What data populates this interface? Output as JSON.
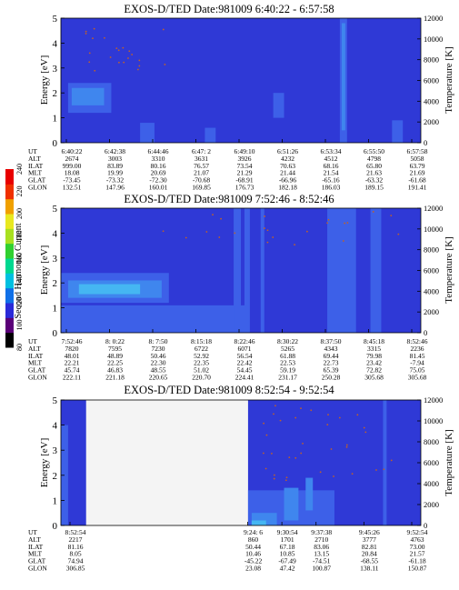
{
  "colorbar": {
    "label": "Second Harmonic Current",
    "ticks": [
      "80",
      "100",
      "120",
      "140",
      "160",
      "180",
      "200",
      "220",
      "240"
    ],
    "colors": [
      "#000000",
      "#5a0078",
      "#2a2ad8",
      "#1070e8",
      "#00c0e0",
      "#00d890",
      "#30d030",
      "#a8e020",
      "#e8e820",
      "#f0a000",
      "#f03000",
      "#e80000"
    ]
  },
  "palette": {
    "background": "#2f39d6",
    "light": "#3d60e8",
    "cyan": "#3f86ee",
    "bright": "#45b6f2",
    "white": "#f4f4f4",
    "dots": "#c0602a"
  },
  "chart_data": [
    {
      "type": "heatmap",
      "title": "EXOS-D/TED   Date:981009  6:40:22 - 6:57:58",
      "ylabel": "Energy [eV]",
      "y2label": "Temperature [K]",
      "ylim": [
        0,
        5
      ],
      "y2lim": [
        0,
        12000
      ],
      "yticks": [
        "0",
        "1",
        "2",
        "3",
        "4",
        "5"
      ],
      "y2ticks": [
        "0",
        "2000",
        "4000",
        "6000",
        "8000",
        "10000",
        "12000"
      ],
      "row_labels": [
        "UT",
        "ALT",
        "ILAT",
        "MLT",
        "GLAT",
        "GLON"
      ],
      "columns": [
        [
          "6:40:22",
          "2674",
          "999.00",
          "18.08",
          "-73.45",
          "132.51"
        ],
        [
          "6:42:38",
          "3003",
          "83.89",
          "19.99",
          "-73.32",
          "147.96"
        ],
        [
          "6:44:46",
          "3310",
          "80.16",
          "20.69",
          "-72.30",
          "160.01"
        ],
        [
          "6:47: 2",
          "3631",
          "76.57",
          "21.07",
          "-70.68",
          "169.85"
        ],
        [
          "6:49:10",
          "3926",
          "73.54",
          "21.29",
          "-68.91",
          "176.73"
        ],
        [
          "6:51:26",
          "4232",
          "70.63",
          "21.44",
          "-66.96",
          "182.18"
        ],
        [
          "6:53:34",
          "4512",
          "68.16",
          "21.54",
          "-65.16",
          "186.03"
        ],
        [
          "6:55:50",
          "4798",
          "65.80",
          "21.63",
          "-63.32",
          "189.15"
        ],
        [
          "6:57:58",
          "5058",
          "63.79",
          "21.69",
          "-61.68",
          "191.41"
        ]
      ]
    },
    {
      "type": "heatmap",
      "title": "EXOS-D/TED   Date:981009  7:52:46 - 8:52:46",
      "ylabel": "Energy [eV]",
      "y2label": "Temperature [K]",
      "ylim": [
        0,
        5
      ],
      "y2lim": [
        0,
        12000
      ],
      "yticks": [
        "0",
        "1",
        "2",
        "3",
        "4",
        "5"
      ],
      "y2ticks": [
        "0",
        "2000",
        "4000",
        "6000",
        "8000",
        "10000",
        "12000"
      ],
      "row_labels": [
        "UT",
        "ALT",
        "ILAT",
        "MLT",
        "GLAT",
        "GLON"
      ],
      "columns": [
        [
          "7:52:46",
          "7820",
          "48.01",
          "22.21",
          "45.74",
          "222.11"
        ],
        [
          "8: 0:22",
          "7595",
          "48.89",
          "22.25",
          "46.83",
          "221.18"
        ],
        [
          "8: 7:50",
          "7230",
          "50.46",
          "22.30",
          "48.55",
          "220.65"
        ],
        [
          "8:15:18",
          "6722",
          "52.92",
          "22.35",
          "51.02",
          "220.70"
        ],
        [
          "8:22:46",
          "6071",
          "56.54",
          "22.42",
          "54.45",
          "224.41"
        ],
        [
          "8:30:22",
          "5265",
          "61.88",
          "22.53",
          "59.19",
          "231.17"
        ],
        [
          "8:37:50",
          "4343",
          "69.44",
          "22.73",
          "65.39",
          "250.28"
        ],
        [
          "8:45:18",
          "3315",
          "79.98",
          "23.42",
          "72.82",
          "305.68"
        ],
        [
          "8:52:46",
          "2236",
          "81.45",
          "-7.94",
          "75.05",
          "305.68"
        ]
      ]
    },
    {
      "type": "heatmap",
      "title": "EXOS-D/TED   Date:981009  8:52:54 - 9:52:54",
      "ylabel": "Energy [eV]",
      "y2label": "Temperature [K]",
      "ylim": [
        0,
        5
      ],
      "y2lim": [
        0,
        12000
      ],
      "yticks": [
        "0",
        "1",
        "2",
        "3",
        "4",
        "5"
      ],
      "y2ticks": [
        "0",
        "2000",
        "4000",
        "6000",
        "8000",
        "10000",
        "12000"
      ],
      "row_labels": [
        "UT",
        "ALT",
        "ILAT",
        "MLT",
        "GLAT",
        "GLON"
      ],
      "columns": [
        [
          "8:52:54",
          "2217",
          "81.16",
          "8.05",
          "74.94",
          "306.85"
        ],
        [
          "9:24: 6",
          "860",
          "50.44",
          "10.46",
          "-45.22",
          "23.08"
        ],
        [
          "9:30:54",
          "1701",
          "67.18",
          "10.85",
          "-67.49",
          "47.42"
        ],
        [
          "9:37:38",
          "2710",
          "83.06",
          "13.15",
          "-74.51",
          "100.87"
        ],
        [
          "9:45:26",
          "3777",
          "82.81",
          "20.84",
          "-68.55",
          "138.11"
        ],
        [
          "9:52:54",
          "4763",
          "73.00",
          "21.57",
          "-61.18",
          "150.87"
        ]
      ]
    }
  ]
}
